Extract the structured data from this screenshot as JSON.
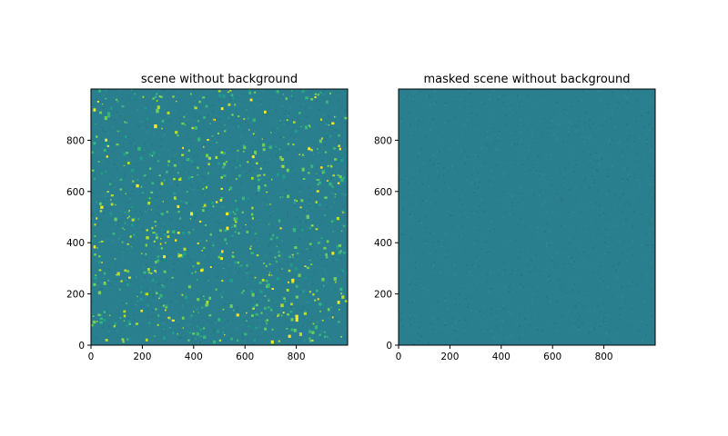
{
  "chart_data": [
    {
      "type": "heatmap",
      "title": "scene without background",
      "xlabel": "",
      "ylabel": "",
      "xlim": [
        0,
        1000
      ],
      "ylim": [
        0,
        1000
      ],
      "xticks": [
        0,
        200,
        400,
        600,
        800
      ],
      "yticks": [
        0,
        200,
        400,
        600,
        800
      ],
      "xtick_labels": [
        "0",
        "200",
        "400",
        "600",
        "800"
      ],
      "ytick_labels": [
        "0",
        "200",
        "400",
        "600",
        "800"
      ],
      "colormap": "viridis",
      "background_color": "#2a7f8e",
      "bright_spots": true,
      "spot_colors": [
        "#fde725",
        "#b5de2b",
        "#6ece58",
        "#35b779",
        "#1f9e89"
      ],
      "grid": false
    },
    {
      "type": "heatmap",
      "title": "masked scene without background",
      "xlabel": "",
      "ylabel": "",
      "xlim": [
        0,
        1000
      ],
      "ylim": [
        0,
        1000
      ],
      "xticks": [
        0,
        200,
        400,
        600,
        800
      ],
      "yticks": [
        0,
        200,
        400,
        600,
        800
      ],
      "xtick_labels": [
        "0",
        "200",
        "400",
        "600",
        "800"
      ],
      "ytick_labels": [
        "0",
        "200",
        "400",
        "600",
        "800"
      ],
      "colormap": "viridis",
      "background_color": "#2a7f8e",
      "bright_spots": false,
      "spot_colors": [],
      "grid": false
    }
  ]
}
